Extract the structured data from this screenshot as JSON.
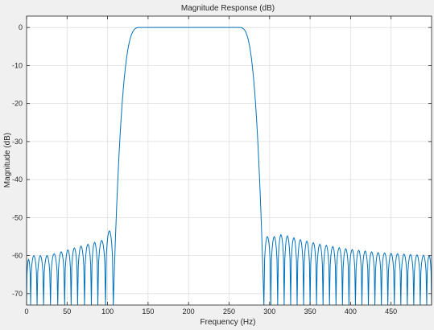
{
  "chart_data": {
    "type": "line",
    "title": "Magnitude Response (dB)",
    "xlabel": "Frequency (Hz)",
    "ylabel": "Magnitude (dB)",
    "xlim": [
      0,
      500
    ],
    "ylim": [
      -73,
      3
    ],
    "grid": true,
    "x_ticks": [
      0,
      50,
      100,
      150,
      200,
      250,
      300,
      350,
      400,
      450
    ],
    "x_tick_labels": [
      "0",
      "50",
      "100",
      "150",
      "200",
      "250",
      "300",
      "350",
      "400",
      "450"
    ],
    "y_ticks": [
      0,
      -10,
      -20,
      -30,
      -40,
      -50,
      -60,
      -70
    ],
    "y_tick_labels": [
      "0",
      "-10",
      "-20",
      "-30",
      "-40",
      "-50",
      "-60",
      "-70"
    ],
    "series_color": "#0072bd",
    "passband_hz": [
      140,
      262
    ],
    "passband_level_db": 0,
    "transition_bands_hz": [
      [
        107,
        140
      ],
      [
        262,
        293
      ]
    ],
    "stopband_lobes": [
      {
        "x": 1,
        "peak_db": -61
      },
      {
        "x": 9,
        "peak_db": -60
      },
      {
        "x": 17,
        "peak_db": -60
      },
      {
        "x": 25,
        "peak_db": -60
      },
      {
        "x": 34,
        "peak_db": -59.5
      },
      {
        "x": 43,
        "peak_db": -59
      },
      {
        "x": 51,
        "peak_db": -58.5
      },
      {
        "x": 59,
        "peak_db": -58
      },
      {
        "x": 67,
        "peak_db": -57.5
      },
      {
        "x": 76,
        "peak_db": -57
      },
      {
        "x": 84,
        "peak_db": -56.5
      },
      {
        "x": 92,
        "peak_db": -56
      },
      {
        "x": 103,
        "peak_db": -53.5
      },
      {
        "x": 297,
        "peak_db": -55
      },
      {
        "x": 306,
        "peak_db": -55
      },
      {
        "x": 314,
        "peak_db": -54.5
      },
      {
        "x": 322,
        "peak_db": -54.8
      },
      {
        "x": 330,
        "peak_db": -55.3
      },
      {
        "x": 338,
        "peak_db": -55.8
      },
      {
        "x": 346,
        "peak_db": -56.2
      },
      {
        "x": 354,
        "peak_db": -56.6
      },
      {
        "x": 362,
        "peak_db": -57
      },
      {
        "x": 370,
        "peak_db": -57.3
      },
      {
        "x": 378,
        "peak_db": -57.6
      },
      {
        "x": 386,
        "peak_db": -57.9
      },
      {
        "x": 394,
        "peak_db": -58.2
      },
      {
        "x": 402,
        "peak_db": -58.4
      },
      {
        "x": 410,
        "peak_db": -58.6
      },
      {
        "x": 418,
        "peak_db": -58.8
      },
      {
        "x": 426,
        "peak_db": -59
      },
      {
        "x": 434,
        "peak_db": -59.2
      },
      {
        "x": 442,
        "peak_db": -59.3
      },
      {
        "x": 450,
        "peak_db": -59.4
      },
      {
        "x": 458,
        "peak_db": -59.5
      },
      {
        "x": 466,
        "peak_db": -59.6
      },
      {
        "x": 474,
        "peak_db": -59.7
      },
      {
        "x": 482,
        "peak_db": -59.8
      },
      {
        "x": 490,
        "peak_db": -59.9
      },
      {
        "x": 498,
        "peak_db": -60
      }
    ]
  }
}
